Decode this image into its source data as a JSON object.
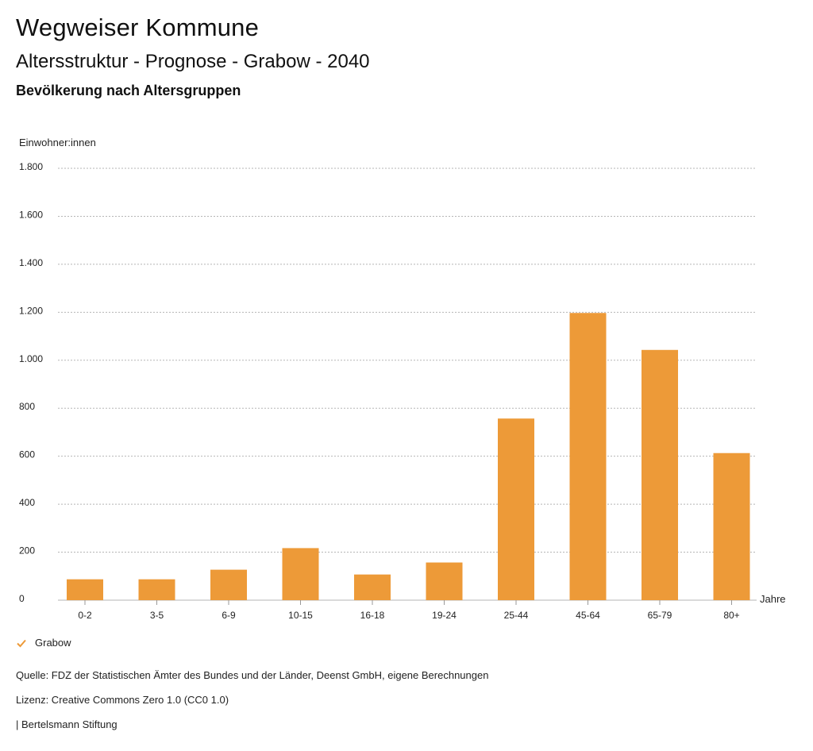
{
  "header": {
    "title": "Wegweiser Kommune",
    "subtitle": "Altersstruktur - Prognose - Grabow - 2040",
    "section": "Bevölkerung nach Altersgruppen"
  },
  "chart_data": {
    "type": "bar",
    "ylabel": "Einwohner:innen",
    "xlabel": "Jahre",
    "categories": [
      "0-2",
      "3-5",
      "6-9",
      "10-15",
      "16-18",
      "19-24",
      "25-44",
      "45-64",
      "65-79",
      "80+"
    ],
    "series": [
      {
        "name": "Grabow",
        "values": [
          87,
          87,
          127,
          217,
          107,
          157,
          757,
          1197,
          1043,
          613
        ]
      }
    ],
    "ylim": [
      0,
      1800
    ],
    "yticks": [
      0,
      200,
      400,
      600,
      800,
      1000,
      1200,
      1400,
      1600,
      1800
    ],
    "ytick_labels": [
      "0",
      "200",
      "400",
      "600",
      "800",
      "1.000",
      "1.200",
      "1.400",
      "1.600",
      "1.800"
    ],
    "grid": true,
    "legend_position": "bottom-left",
    "color": "#ED9A38"
  },
  "legend": {
    "label": "Grabow"
  },
  "footer": {
    "source": "Quelle: FDZ der Statistischen Ämter des Bundes und der Länder, Deenst GmbH, eigene Berechnungen",
    "license": "Lizenz: Creative Commons Zero 1.0 (CC0 1.0)",
    "publisher": "| Bertelsmann Stiftung"
  }
}
